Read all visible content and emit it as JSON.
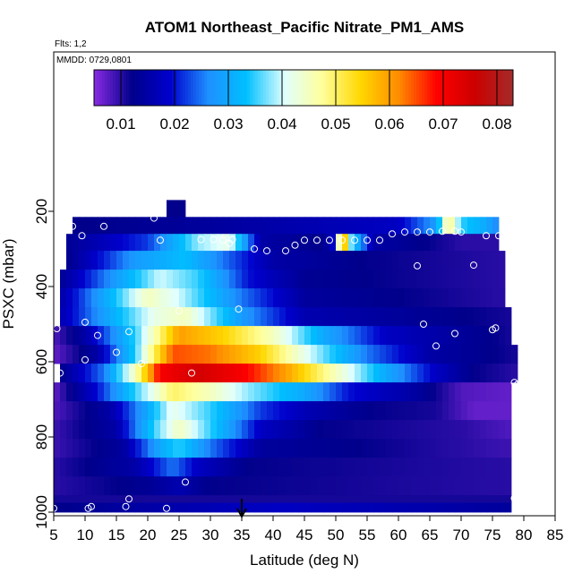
{
  "chart_data": {
    "type": "heatmap",
    "title": "ATOM1 Northeast_Pacific Nitrate_PM1_AMS",
    "flights_label": "Flts: 1,2",
    "date_label": "MMDD: 0729,0801",
    "xlabel": "Latitude (deg N)",
    "ylabel": "PSXC (mbar)",
    "xlim": [
      5,
      85
    ],
    "ylim": [
      1000,
      0
    ],
    "x_ticks": [
      5,
      10,
      15,
      20,
      25,
      30,
      35,
      40,
      45,
      50,
      55,
      60,
      65,
      70,
      75,
      80,
      85
    ],
    "y_ticks": [
      200,
      400,
      600,
      800,
      1000
    ],
    "grid": false,
    "colorbar": {
      "placement": "top",
      "min": 0.005,
      "max": 0.083,
      "ticks": [
        0.01,
        0.02,
        0.03,
        0.04,
        0.05,
        0.06,
        0.07,
        0.08
      ],
      "colors": [
        "#8a2be2",
        "#00008b",
        "#0000cd",
        "#1e90ff",
        "#00bfff",
        "#e0ffff",
        "#ffff99",
        "#ffd700",
        "#ff8c00",
        "#ff0000",
        "#cc0000",
        "#a52a2a"
      ]
    },
    "layers": [
      {
        "p_top": 170,
        "p_bot": 215,
        "x_start": 23,
        "x_end": 26,
        "anchors": [
          [
            23,
            0.012
          ],
          [
            26,
            0.012
          ]
        ]
      },
      {
        "p_top": 215,
        "p_bot": 260,
        "x_start": 8,
        "x_end": 76,
        "anchors": [
          [
            8,
            0.012
          ],
          [
            30,
            0.014
          ],
          [
            60,
            0.018
          ],
          [
            66,
            0.028
          ],
          [
            68,
            0.05
          ],
          [
            70,
            0.035
          ],
          [
            74,
            0.03
          ],
          [
            76,
            0.025
          ]
        ]
      },
      {
        "p_top": 260,
        "p_bot": 305,
        "x_start": 7,
        "x_end": 76,
        "anchors": [
          [
            7,
            0.013
          ],
          [
            20,
            0.022
          ],
          [
            28,
            0.038
          ],
          [
            33,
            0.042
          ],
          [
            38,
            0.015
          ],
          [
            48,
            0.012
          ],
          [
            50,
            0.02
          ],
          [
            51,
            0.07
          ],
          [
            52,
            0.04
          ],
          [
            56,
            0.015
          ],
          [
            70,
            0.01
          ],
          [
            76,
            0.01
          ]
        ]
      },
      {
        "p_top": 305,
        "p_bot": 355,
        "x_start": 7,
        "x_end": 77,
        "anchors": [
          [
            7,
            0.012
          ],
          [
            18,
            0.028
          ],
          [
            26,
            0.033
          ],
          [
            32,
            0.025
          ],
          [
            40,
            0.015
          ],
          [
            55,
            0.012
          ],
          [
            77,
            0.01
          ]
        ]
      },
      {
        "p_top": 355,
        "p_bot": 405,
        "x_start": 6,
        "x_end": 77,
        "anchors": [
          [
            6,
            0.013
          ],
          [
            16,
            0.03
          ],
          [
            22,
            0.04
          ],
          [
            28,
            0.035
          ],
          [
            36,
            0.02
          ],
          [
            45,
            0.013
          ],
          [
            77,
            0.01
          ]
        ]
      },
      {
        "p_top": 405,
        "p_bot": 455,
        "x_start": 6,
        "x_end": 77,
        "anchors": [
          [
            6,
            0.015
          ],
          [
            15,
            0.034
          ],
          [
            20,
            0.045
          ],
          [
            25,
            0.04
          ],
          [
            35,
            0.025
          ],
          [
            45,
            0.014
          ],
          [
            77,
            0.01
          ]
        ]
      },
      {
        "p_top": 455,
        "p_bot": 505,
        "x_start": 6,
        "x_end": 78,
        "anchors": [
          [
            6,
            0.016
          ],
          [
            15,
            0.032
          ],
          [
            21,
            0.042
          ],
          [
            26,
            0.045
          ],
          [
            35,
            0.028
          ],
          [
            45,
            0.016
          ],
          [
            78,
            0.011
          ]
        ]
      },
      {
        "p_top": 505,
        "p_bot": 555,
        "x_start": 5,
        "x_end": 78,
        "anchors": [
          [
            5,
            0.008
          ],
          [
            10,
            0.015
          ],
          [
            18,
            0.035
          ],
          [
            25,
            0.06
          ],
          [
            32,
            0.055
          ],
          [
            40,
            0.045
          ],
          [
            48,
            0.03
          ],
          [
            58,
            0.018
          ],
          [
            78,
            0.011
          ]
        ]
      },
      {
        "p_top": 555,
        "p_bot": 605,
        "x_start": 5,
        "x_end": 79,
        "anchors": [
          [
            5,
            0.007
          ],
          [
            12,
            0.015
          ],
          [
            18,
            0.035
          ],
          [
            24,
            0.065
          ],
          [
            30,
            0.063
          ],
          [
            38,
            0.055
          ],
          [
            46,
            0.04
          ],
          [
            55,
            0.025
          ],
          [
            65,
            0.015
          ],
          [
            79,
            0.011
          ]
        ]
      },
      {
        "p_top": 605,
        "p_bot": 655,
        "x_start": 6,
        "x_end": 79,
        "anchors": [
          [
            6,
            0.012
          ],
          [
            13,
            0.025
          ],
          [
            18,
            0.045
          ],
          [
            22,
            0.07
          ],
          [
            28,
            0.075
          ],
          [
            35,
            0.07
          ],
          [
            42,
            0.06
          ],
          [
            50,
            0.045
          ],
          [
            58,
            0.03
          ],
          [
            66,
            0.018
          ],
          [
            72,
            0.012
          ],
          [
            79,
            0.01
          ]
        ]
      },
      {
        "p_top": 655,
        "p_bot": 705,
        "x_start": 5,
        "x_end": 78,
        "anchors": [
          [
            5,
            0.007
          ],
          [
            12,
            0.02
          ],
          [
            18,
            0.035
          ],
          [
            24,
            0.05
          ],
          [
            30,
            0.045
          ],
          [
            36,
            0.038
          ],
          [
            45,
            0.03
          ],
          [
            52,
            0.02
          ],
          [
            62,
            0.015
          ],
          [
            70,
            0.008
          ],
          [
            78,
            0.007
          ]
        ]
      },
      {
        "p_top": 705,
        "p_bot": 755,
        "x_start": 5,
        "x_end": 78,
        "anchors": [
          [
            5,
            0.008
          ],
          [
            14,
            0.015
          ],
          [
            20,
            0.03
          ],
          [
            24,
            0.042
          ],
          [
            30,
            0.035
          ],
          [
            38,
            0.022
          ],
          [
            46,
            0.016
          ],
          [
            56,
            0.012
          ],
          [
            66,
            0.011
          ],
          [
            72,
            0.007
          ],
          [
            78,
            0.007
          ]
        ]
      },
      {
        "p_top": 755,
        "p_bot": 805,
        "x_start": 5,
        "x_end": 78,
        "anchors": [
          [
            5,
            0.009
          ],
          [
            15,
            0.015
          ],
          [
            21,
            0.035
          ],
          [
            25,
            0.045
          ],
          [
            30,
            0.035
          ],
          [
            38,
            0.018
          ],
          [
            48,
            0.012
          ],
          [
            70,
            0.01
          ],
          [
            78,
            0.008
          ]
        ]
      },
      {
        "p_top": 805,
        "p_bot": 855,
        "x_start": 5,
        "x_end": 78,
        "anchors": [
          [
            5,
            0.009
          ],
          [
            16,
            0.014
          ],
          [
            22,
            0.03
          ],
          [
            25,
            0.035
          ],
          [
            30,
            0.025
          ],
          [
            38,
            0.014
          ],
          [
            78,
            0.009
          ]
        ]
      },
      {
        "p_top": 855,
        "p_bot": 905,
        "x_start": 5,
        "x_end": 78,
        "anchors": [
          [
            5,
            0.01
          ],
          [
            18,
            0.015
          ],
          [
            24,
            0.025
          ],
          [
            28,
            0.018
          ],
          [
            36,
            0.012
          ],
          [
            78,
            0.01
          ]
        ]
      },
      {
        "p_top": 905,
        "p_bot": 955,
        "x_start": 5,
        "x_end": 78,
        "anchors": [
          [
            5,
            0.01
          ],
          [
            20,
            0.013
          ],
          [
            25,
            0.016
          ],
          [
            30,
            0.012
          ],
          [
            78,
            0.01
          ]
        ]
      },
      {
        "p_top": 955,
        "p_bot": 975,
        "x_start": 5,
        "x_end": 78,
        "anchors": [
          [
            5,
            0.011
          ],
          [
            78,
            0.011
          ]
        ]
      },
      {
        "p_top": 975,
        "p_bot": 1000,
        "x_start": 5,
        "x_end": 78,
        "anchors": [
          [
            5,
            0.012
          ],
          [
            20,
            0.015
          ],
          [
            40,
            0.018
          ],
          [
            60,
            0.016
          ],
          [
            78,
            0.014
          ]
        ]
      }
    ],
    "sample_points": [
      [
        8,
        240
      ],
      [
        9.5,
        265
      ],
      [
        13,
        240
      ],
      [
        21,
        218
      ],
      [
        22,
        277
      ],
      [
        27,
        198
      ],
      [
        29,
        197
      ],
      [
        28.5,
        275
      ],
      [
        30.5,
        275
      ],
      [
        32,
        277
      ],
      [
        33,
        285
      ],
      [
        33.5,
        275
      ],
      [
        37,
        300
      ],
      [
        39,
        305
      ],
      [
        42,
        305
      ],
      [
        43.5,
        290
      ],
      [
        45,
        277
      ],
      [
        47,
        277
      ],
      [
        49,
        277
      ],
      [
        51,
        277
      ],
      [
        53,
        277
      ],
      [
        55,
        277
      ],
      [
        57,
        277
      ],
      [
        59,
        260
      ],
      [
        61,
        255
      ],
      [
        63,
        255
      ],
      [
        65,
        255
      ],
      [
        67,
        253
      ],
      [
        69,
        253
      ],
      [
        70,
        255
      ],
      [
        74,
        265
      ],
      [
        76,
        265
      ],
      [
        63,
        345
      ],
      [
        72,
        343
      ],
      [
        10,
        495
      ],
      [
        12,
        530
      ],
      [
        17,
        520
      ],
      [
        25,
        465
      ],
      [
        34.5,
        460
      ],
      [
        64,
        500
      ],
      [
        66,
        558
      ],
      [
        69,
        525
      ],
      [
        75,
        515
      ],
      [
        75.5,
        510
      ],
      [
        5.5,
        512
      ],
      [
        10,
        595
      ],
      [
        15,
        575
      ],
      [
        19,
        605
      ],
      [
        27,
        630
      ],
      [
        6,
        630
      ],
      [
        78.5,
        655
      ],
      [
        79,
        660
      ],
      [
        26,
        920
      ],
      [
        17,
        965
      ],
      [
        16.5,
        985
      ],
      [
        11,
        985
      ],
      [
        10.5,
        990
      ],
      [
        23,
        990
      ],
      [
        5,
        990
      ],
      [
        78.5,
        963
      ]
    ],
    "arrow_marker_x": 35
  }
}
